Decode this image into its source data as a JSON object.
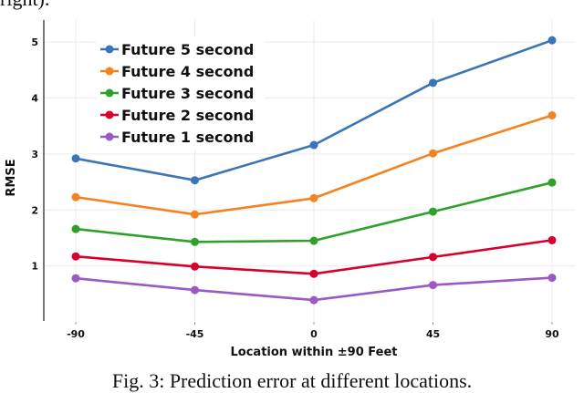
{
  "page": {
    "top_text": "right).",
    "caption": "Fig. 3: Prediction error at different locations."
  },
  "chart_data": {
    "type": "line",
    "title": "",
    "xlabel": "Location within ±90 Feet",
    "ylabel": "RMSE",
    "x": [
      -90,
      -45,
      0,
      45,
      90
    ],
    "x_tick_labels": [
      "-90",
      "-45",
      "0",
      "45",
      "90"
    ],
    "y_ticks": [
      1,
      2,
      3,
      4,
      5
    ],
    "ylim": [
      0,
      5.2
    ],
    "grid": true,
    "legend_position": "upper-left",
    "series": [
      {
        "name": "Future 5 second",
        "color": "#3b75b8",
        "values": [
          2.92,
          2.53,
          3.16,
          4.27,
          5.03
        ]
      },
      {
        "name": "Future 4 second",
        "color": "#f58220",
        "values": [
          2.23,
          1.92,
          2.21,
          3.01,
          3.69
        ]
      },
      {
        "name": "Future 3 second",
        "color": "#2fa02b",
        "values": [
          1.66,
          1.43,
          1.45,
          1.97,
          2.49
        ]
      },
      {
        "name": "Future 2 second",
        "color": "#d7002c",
        "values": [
          1.17,
          0.99,
          0.86,
          1.16,
          1.46
        ]
      },
      {
        "name": "Future 1 second",
        "color": "#9b59c3",
        "values": [
          0.78,
          0.57,
          0.39,
          0.66,
          0.79
        ]
      }
    ]
  }
}
